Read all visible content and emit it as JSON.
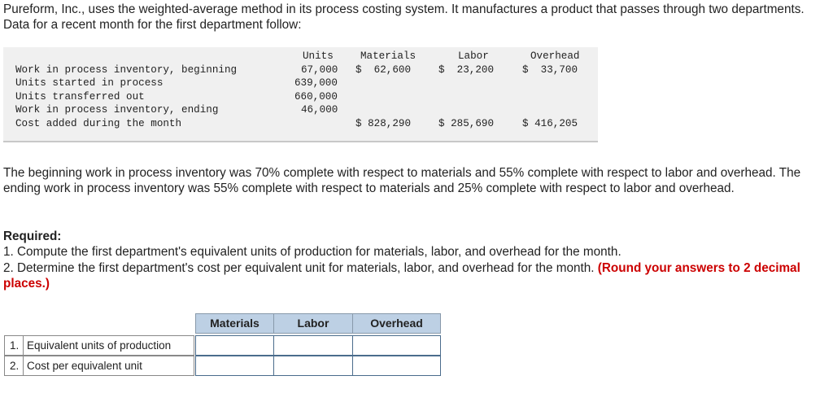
{
  "intro": "Pureform, Inc., uses the weighted-average method in its process costing system. It manufactures a product that passes through two departments. Data for a recent month for the first department follow:",
  "data_table": {
    "headers": {
      "units": "Units",
      "materials": "Materials",
      "labor": "Labor",
      "overhead": "Overhead"
    },
    "rows": [
      {
        "label": "Work in process inventory, beginning",
        "units": "67,000",
        "materials": "$  62,600",
        "labor": "$  23,200",
        "overhead": "$  33,700"
      },
      {
        "label": "Units started in process",
        "units": "639,000"
      },
      {
        "label": "Units transferred out",
        "units": "660,000"
      },
      {
        "label": "Work in process inventory, ending",
        "units": "46,000"
      },
      {
        "label": "Cost added during the month",
        "materials": "$ 828,290",
        "labor": "$ 285,690",
        "overhead": "$ 416,205"
      }
    ]
  },
  "para2": "The beginning work in process inventory was 70% complete with respect to materials and 55% complete with respect to labor and overhead. The ending work in process inventory was 55% complete with respect to materials and 25% complete with respect to labor and overhead.",
  "required": {
    "heading": "Required:",
    "item1": "1. Compute the first department's equivalent units of production for materials, labor, and overhead for the month.",
    "item2": "2. Determine the first department's cost per equivalent unit for materials, labor, and overhead for the month.",
    "item2_note": "(Round your answers to 2 decimal places.)"
  },
  "answer_grid": {
    "headers": [
      "Materials",
      "Labor",
      "Overhead"
    ],
    "rows": [
      {
        "num": "1.",
        "label": "Equivalent units of production",
        "values": [
          "",
          "",
          ""
        ]
      },
      {
        "num": "2.",
        "label": "Cost per equivalent unit",
        "values": [
          "",
          "",
          ""
        ]
      }
    ]
  }
}
